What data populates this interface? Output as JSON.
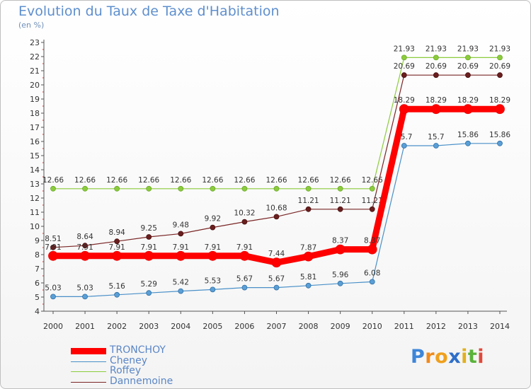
{
  "title": "Evolution du Taux de Taxe d'Habitation",
  "unit": "(en %)",
  "logo": "Proxiti",
  "colors": {
    "TRONCHOY": "#ff0000",
    "Cheney": "#4a90c8",
    "Roffey": "#8ccc3c",
    "Dannemoine": "#7a2626",
    "axis": "#555555"
  },
  "chart_data": {
    "type": "line",
    "title": "Evolution du Taux de Taxe d'Habitation",
    "ylabel": "(en %)",
    "xlabel": "",
    "ylim": [
      4,
      23
    ],
    "yticks": [
      4,
      5,
      6,
      7,
      8,
      9,
      10,
      11,
      12,
      13,
      14,
      15,
      16,
      17,
      18,
      19,
      20,
      21,
      22,
      23
    ],
    "x": [
      "2000",
      "2001",
      "2002",
      "2003",
      "2004",
      "2005",
      "2006",
      "2007",
      "2008",
      "2009",
      "2010",
      "2011",
      "2012",
      "2013",
      "2014"
    ],
    "legend_position": "bottom-left",
    "series": [
      {
        "name": "Roffey",
        "values": [
          12.66,
          12.66,
          12.66,
          12.66,
          12.66,
          12.66,
          12.66,
          12.66,
          12.66,
          12.66,
          12.66,
          21.93,
          21.93,
          21.93,
          21.93
        ],
        "labels": [
          "12.66",
          "12.66",
          "12.66",
          "12.66",
          "12.66",
          "12.66",
          "12.66",
          "12.66",
          "12.66",
          "12.66",
          "12.66",
          "21.93",
          "21.93",
          "21.93",
          "21.93"
        ]
      },
      {
        "name": "Dannemoine",
        "values": [
          8.51,
          8.64,
          8.94,
          9.25,
          9.48,
          9.92,
          10.32,
          10.68,
          11.21,
          11.21,
          11.21,
          20.69,
          20.69,
          20.69,
          20.69
        ],
        "labels": [
          "8.51",
          "8.64",
          "8.94",
          "9.25",
          "9.48",
          "9.92",
          "10.32",
          "10.68",
          "11.21",
          "11.21",
          "11.21",
          "20.69",
          "20.69",
          "20.69",
          "20.69"
        ]
      },
      {
        "name": "Cheney",
        "values": [
          5.03,
          5.03,
          5.16,
          5.29,
          5.42,
          5.53,
          5.67,
          5.67,
          5.81,
          5.96,
          6.08,
          15.7,
          15.7,
          15.86,
          15.86
        ],
        "labels": [
          "5.03",
          "5.03",
          "5.16",
          "5.29",
          "5.42",
          "5.53",
          "5.67",
          "5.67",
          "5.81",
          "5.96",
          "6.08",
          "15.7",
          "15.7",
          "15.86",
          "15.86"
        ]
      },
      {
        "name": "TRONCHOY",
        "values": [
          7.91,
          7.91,
          7.91,
          7.91,
          7.91,
          7.91,
          7.91,
          7.44,
          7.87,
          8.37,
          8.37,
          18.29,
          18.29,
          18.29,
          18.29
        ],
        "labels": [
          "7.91",
          "7.91",
          "7.91",
          "7.91",
          "7.91",
          "7.91",
          "7.91",
          "7.44",
          "7.87",
          "8.37",
          "8.37",
          "18.29",
          "18.29",
          "18.29",
          "18.29"
        ]
      }
    ],
    "legend": [
      "TRONCHOY",
      "Cheney",
      "Roffey",
      "Dannemoine"
    ]
  }
}
